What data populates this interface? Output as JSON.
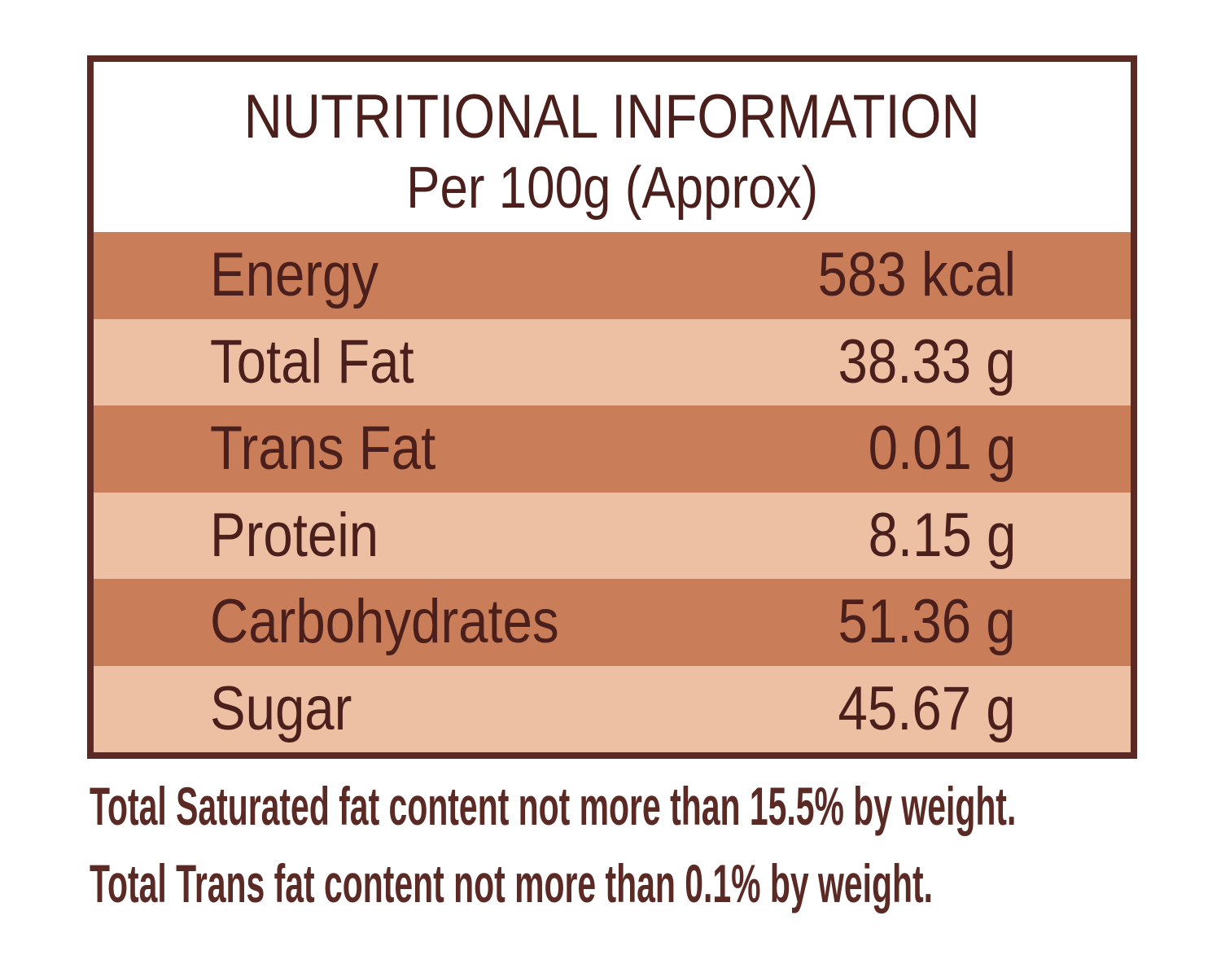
{
  "header": {
    "title": "NUTRITIONAL INFORMATION",
    "subtitle": "Per 100g (Approx)"
  },
  "table": {
    "rows": [
      [
        "Energy",
        "583 kcal"
      ],
      [
        "Total Fat",
        "38.33 g"
      ],
      [
        "Trans Fat",
        "0.01 g"
      ],
      [
        "Protein",
        "8.15 g"
      ],
      [
        "Carbohydrates",
        "51.36 g"
      ],
      [
        "Sugar",
        "45.67 g"
      ]
    ]
  },
  "footnotes": [
    "Total Saturated fat content not more than 15.5% by weight.",
    "Total Trans fat content not more than 0.1% by weight."
  ]
}
